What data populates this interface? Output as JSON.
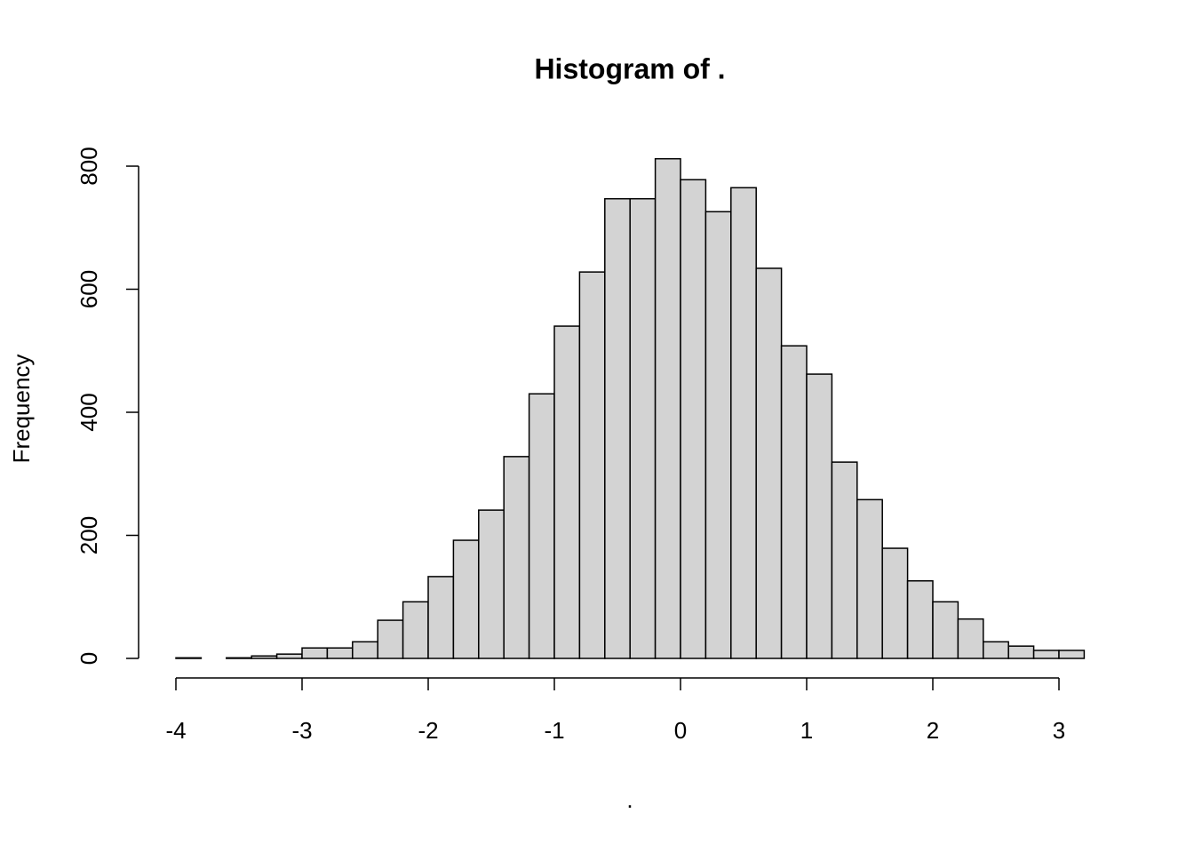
{
  "chart_data": {
    "type": "histogram",
    "title": "Histogram of .",
    "x_label": ".",
    "y_label": "Frequency",
    "bins": [
      -4,
      -3.8,
      -3.6,
      -3.4,
      -3.2,
      -3,
      -2.8,
      -2.6,
      -2.4,
      -2.2,
      -2,
      -1.8,
      -1.6,
      -1.4,
      -1.2,
      -1,
      -0.8,
      -0.6,
      -0.4,
      -0.2,
      0,
      0.2,
      0.4,
      0.6,
      0.8,
      1,
      1.2,
      1.4,
      1.6,
      1.8,
      2,
      2.2,
      2.4,
      2.6,
      2.8,
      3,
      3.2
    ],
    "values": [
      1,
      0,
      1,
      4,
      7,
      17,
      17,
      27,
      62,
      92,
      133,
      192,
      241,
      328,
      430,
      540,
      628,
      747,
      747,
      812,
      778,
      726,
      765,
      634,
      508,
      462,
      319,
      258,
      179,
      126,
      92,
      64,
      27,
      20,
      13,
      13
    ],
    "color": "#d3d3d3",
    "xlim": [
      -4,
      3.2
    ],
    "xticks": [
      -4,
      -3,
      -2,
      -1,
      0,
      1,
      2,
      3
    ],
    "ylim": [
      0,
      812
    ],
    "yticks": [
      0,
      200,
      400,
      600,
      800
    ],
    "grid": false
  }
}
